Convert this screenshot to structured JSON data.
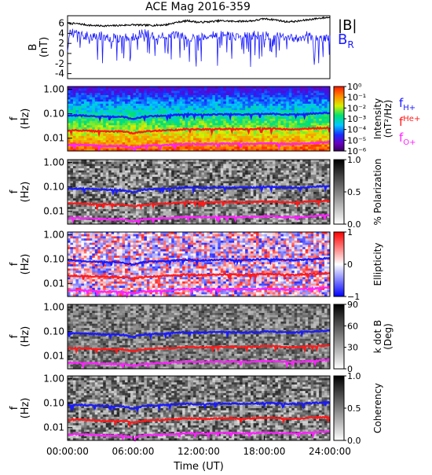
{
  "chart_data": {
    "title": "ACE Mag 2016-359",
    "type": "line+heatmap",
    "x_axis": {
      "title": "Time (UT)",
      "ticks": [
        "00:00:00",
        "06:00:00",
        "12:00:00",
        "18:00:00",
        "24:00:00"
      ],
      "range_hours": [
        0,
        24
      ]
    },
    "panels": [
      {
        "id": "b-field",
        "type": "line",
        "ylabel_top": "B",
        "ylabel_units": "(nT)",
        "yticks": [
          "6",
          "4",
          "2",
          "0",
          "-2",
          "-4"
        ],
        "ylim": [
          -5,
          7.5
        ],
        "legend": {
          "B_total": "|B|",
          "B_radial": "B",
          "B_radial_sub": "R"
        },
        "colors": {
          "B_total": "#000000",
          "B_radial": "#1a1aff"
        },
        "series": [
          {
            "key": "B_total",
            "hours": [
              0,
              1,
              2,
              3,
              4,
              5,
              6,
              7,
              8,
              9,
              10,
              11,
              12,
              13,
              14,
              15,
              16,
              17,
              18,
              19,
              20,
              21,
              22,
              23,
              24
            ],
            "values": [
              6.0,
              5.9,
              5.6,
              5.5,
              5.5,
              5.6,
              5.7,
              5.6,
              5.6,
              5.7,
              6.2,
              6.5,
              6.2,
              6.3,
              6.5,
              6.4,
              6.4,
              6.5,
              6.9,
              6.7,
              6.3,
              6.4,
              6.7,
              7.0,
              7.2
            ]
          },
          {
            "key": "B_radial",
            "hours": [
              0,
              1,
              2,
              3,
              4,
              5,
              6,
              7,
              8,
              9,
              10,
              11,
              12,
              13,
              14,
              15,
              16,
              17,
              18,
              19,
              20,
              21,
              22,
              23,
              24
            ],
            "values": [
              4.5,
              3.6,
              3.4,
              3.6,
              3.0,
              3.1,
              3.4,
              4.0,
              3.5,
              3.4,
              3.6,
              3.1,
              3.2,
              3.6,
              3.6,
              3.5,
              3.2,
              3.7,
              3.5,
              3.5,
              3.0,
              3.1,
              3.6,
              2.8,
              3.0
            ]
          }
        ]
      },
      {
        "id": "intensity",
        "type": "heatmap",
        "ylabel_top": "f",
        "ylabel_units": "(Hz)",
        "colorbar_title": "Intensity",
        "colorbar_units": "(nT²/Hz)",
        "colorbar_ticks": [
          "10⁰",
          "10⁻¹",
          "10⁻²",
          "10⁻³",
          "10⁻⁴",
          "10⁻⁵",
          "10⁻⁶"
        ],
        "colormap": "rainbow"
      },
      {
        "id": "polarization",
        "type": "heatmap",
        "ylabel_top": "f",
        "ylabel_units": "(Hz)",
        "colorbar_title": "% Polarization",
        "colorbar_ticks": [
          "1.0",
          "0.5",
          "0.0"
        ],
        "colormap": "gray"
      },
      {
        "id": "ellipticity",
        "type": "heatmap",
        "ylabel_top": "f",
        "ylabel_units": "(Hz)",
        "colorbar_title": "Ellipticity",
        "colorbar_ticks": [
          "1",
          "0",
          "−1"
        ],
        "colormap": "bwr"
      },
      {
        "id": "kdotb",
        "type": "heatmap",
        "ylabel_top": "f",
        "ylabel_units": "(Hz)",
        "colorbar_title": "k dot B",
        "colorbar_units": "(Deg)",
        "colorbar_ticks": [
          "90",
          "60",
          "30",
          "0"
        ],
        "colormap": "gray"
      },
      {
        "id": "coherency",
        "type": "heatmap",
        "ylabel_top": "f",
        "ylabel_units": "(Hz)",
        "colorbar_title": "Coherency",
        "colorbar_ticks": [
          "1.0",
          "0.5",
          "0.0"
        ],
        "colormap": "gray"
      }
    ],
    "freq_axis": {
      "ticks": [
        "1.00",
        "0.10",
        "0.01"
      ],
      "tick_values": [
        1.0,
        0.1,
        0.01
      ],
      "ylim": [
        0.003,
        1.3
      ],
      "scale": "log"
    },
    "gyro_lines": {
      "legend": [
        {
          "key": "H",
          "label": "f",
          "sub": "H+",
          "color": "#1a1aff"
        },
        {
          "key": "He",
          "label": "f",
          "sup": "He+",
          "color": "#ff1a1a"
        },
        {
          "key": "O",
          "label": "f",
          "sub": "O+",
          "color": "#ff22ff"
        }
      ],
      "hours": [
        0,
        1,
        2,
        3,
        4,
        5,
        6,
        7,
        8,
        9,
        10,
        11,
        12,
        13,
        14,
        15,
        16,
        17,
        18,
        19,
        20,
        21,
        22,
        23,
        24
      ],
      "H_hz": [
        0.085,
        0.085,
        0.082,
        0.078,
        0.076,
        0.075,
        0.06,
        0.078,
        0.08,
        0.084,
        0.09,
        0.095,
        0.09,
        0.092,
        0.095,
        0.094,
        0.093,
        0.094,
        0.1,
        0.098,
        0.092,
        0.094,
        0.098,
        0.105,
        0.11
      ],
      "He_hz": [
        0.021,
        0.021,
        0.02,
        0.019,
        0.019,
        0.019,
        0.016,
        0.019,
        0.02,
        0.021,
        0.022,
        0.024,
        0.023,
        0.023,
        0.024,
        0.024,
        0.023,
        0.024,
        0.025,
        0.025,
        0.023,
        0.023,
        0.025,
        0.026,
        0.027
      ],
      "O_hz": [
        0.0053,
        0.0053,
        0.0051,
        0.0048,
        0.0047,
        0.0047,
        0.004,
        0.0048,
        0.005,
        0.0052,
        0.0056,
        0.0059,
        0.0057,
        0.0058,
        0.0059,
        0.0059,
        0.0058,
        0.0059,
        0.0063,
        0.0061,
        0.0057,
        0.0058,
        0.0061,
        0.0066,
        0.0069
      ]
    }
  }
}
